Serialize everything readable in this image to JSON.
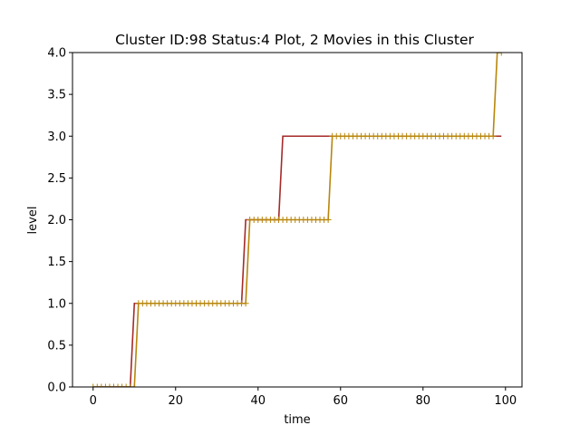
{
  "chart_data": {
    "type": "line",
    "title": "Cluster ID:98 Status:4 Plot, 2 Movies in this Cluster",
    "xlabel": "time",
    "ylabel": "level",
    "xlim": [
      -5,
      104
    ],
    "ylim": [
      0,
      4.0
    ],
    "xticks": [
      0,
      20,
      40,
      60,
      80,
      100
    ],
    "xtick_labels": [
      "0",
      "20",
      "40",
      "60",
      "80",
      "100"
    ],
    "yticks": [
      0.0,
      0.5,
      1.0,
      1.5,
      2.0,
      2.5,
      3.0,
      3.5,
      4.0
    ],
    "ytick_labels": [
      "0.0",
      "0.5",
      "1.0",
      "1.5",
      "2.0",
      "2.5",
      "3.0",
      "3.5",
      "4.0"
    ],
    "grid": false,
    "series": [
      {
        "color": "#a52a2a",
        "marker": "none",
        "x": [
          0,
          9,
          10,
          36,
          37,
          45,
          46,
          99
        ],
        "y": [
          0,
          0,
          1,
          1,
          2,
          2,
          3,
          3
        ]
      },
      {
        "color": "#b8860b",
        "marker": "plus",
        "x": [
          0,
          10,
          11,
          37,
          38,
          57,
          58,
          97,
          98,
          99
        ],
        "y": [
          0,
          0,
          1,
          1,
          2,
          2,
          3,
          3,
          4,
          4
        ]
      }
    ]
  }
}
